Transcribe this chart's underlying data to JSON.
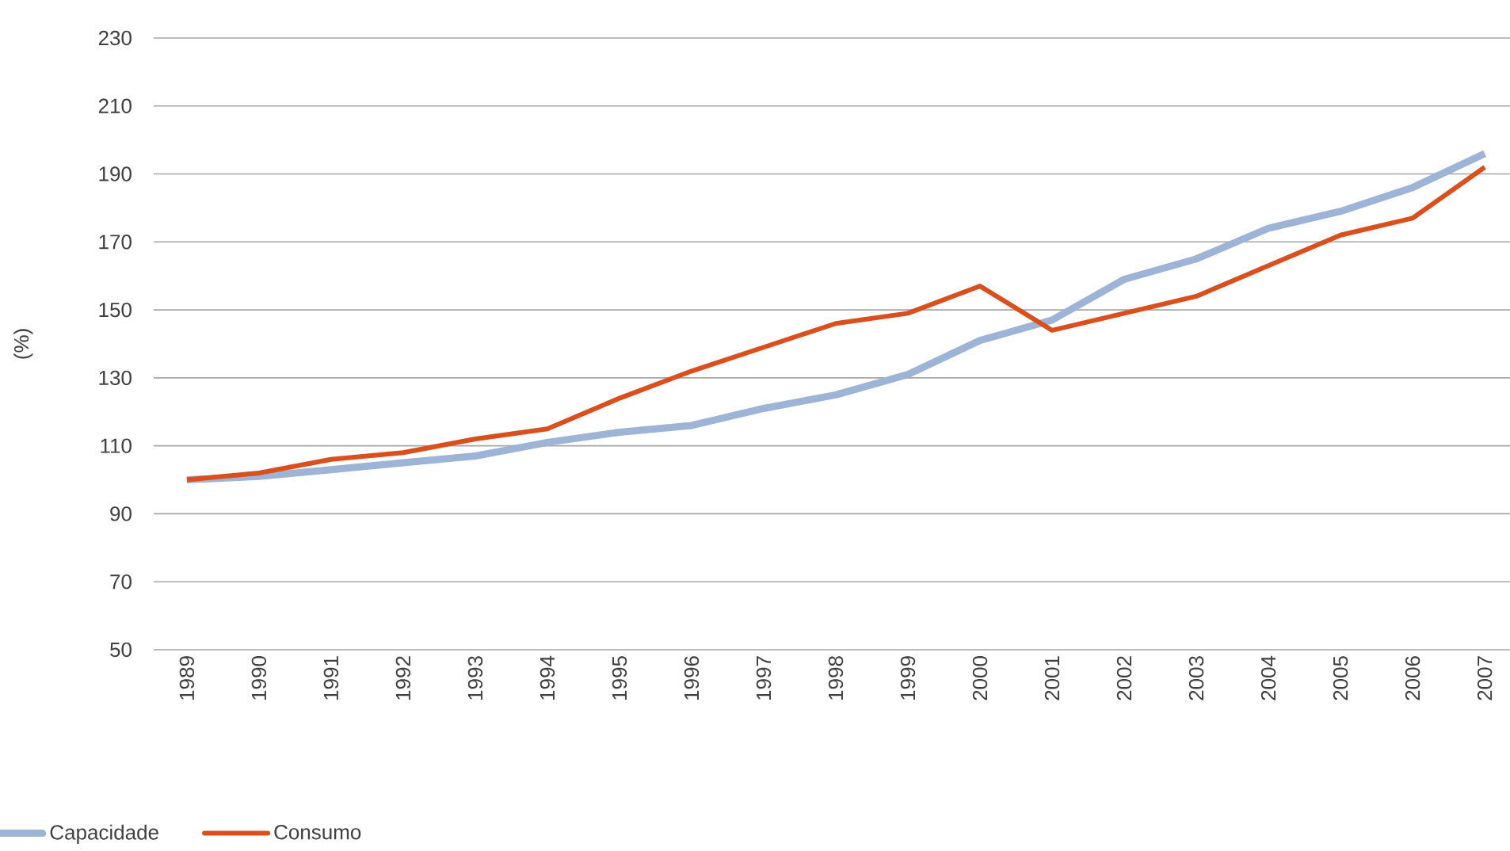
{
  "chart_data": {
    "type": "line",
    "ylabel": "(%)",
    "categories": [
      "1989",
      "1990",
      "1991",
      "1992",
      "1993",
      "1994",
      "1995",
      "1996",
      "1997",
      "1998",
      "1999",
      "2000",
      "2001",
      "2002",
      "2003",
      "2004",
      "2005",
      "2006",
      "2007"
    ],
    "series": [
      {
        "name": "Capacidade",
        "color": "#9db4d6",
        "values": [
          100,
          101,
          103,
          105,
          107,
          111,
          114,
          116,
          121,
          125,
          131,
          141,
          147,
          159,
          165,
          174,
          179,
          186,
          196
        ]
      },
      {
        "name": "Consumo",
        "color": "#d9501e",
        "values": [
          100,
          102,
          106,
          108,
          112,
          115,
          124,
          132,
          139,
          146,
          149,
          157,
          144,
          149,
          154,
          163,
          172,
          177,
          192
        ]
      }
    ],
    "ylim": [
      50,
      230
    ],
    "yticks": [
      50,
      70,
      90,
      110,
      130,
      150,
      170,
      190,
      210,
      230
    ],
    "grid": "y",
    "legend": "bottom left",
    "marker": "none",
    "line_style": "solid"
  }
}
